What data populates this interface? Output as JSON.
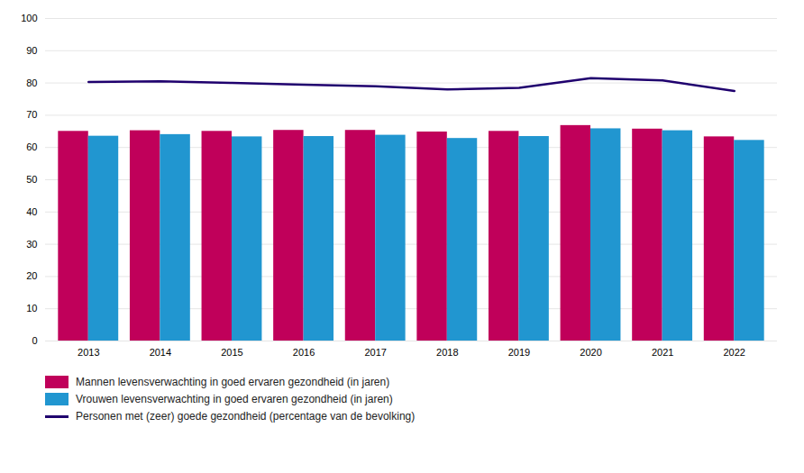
{
  "chart_data": {
    "type": "bar",
    "categories": [
      "2013",
      "2014",
      "2015",
      "2016",
      "2017",
      "2018",
      "2019",
      "2020",
      "2021",
      "2022"
    ],
    "series": [
      {
        "name": "Mannen levensverwachting in goed ervaren gezondheid (in jaren)",
        "type": "bar",
        "color": "#C0005A",
        "values": [
          65.0,
          65.2,
          65.0,
          65.3,
          65.3,
          64.8,
          65.0,
          66.8,
          65.7,
          63.3
        ]
      },
      {
        "name": "Vrouwen levensverwachting in goed ervaren gezondheid (in jaren)",
        "type": "bar",
        "color": "#2196D0",
        "values": [
          63.5,
          64.0,
          63.3,
          63.4,
          63.8,
          62.8,
          63.4,
          65.8,
          65.2,
          62.2
        ]
      },
      {
        "name": "Personen met (zeer) goede gezondheid (percentage van de bevolking)",
        "type": "line",
        "color": "#1F006E",
        "values": [
          80.3,
          80.5,
          80.0,
          79.5,
          79.0,
          78.0,
          78.5,
          81.5,
          80.8,
          77.5
        ]
      }
    ],
    "ylim": [
      0,
      100
    ],
    "yticks": [
      0,
      10,
      20,
      30,
      40,
      50,
      60,
      70,
      80,
      90,
      100
    ],
    "grid": true,
    "legend": "lower left"
  }
}
